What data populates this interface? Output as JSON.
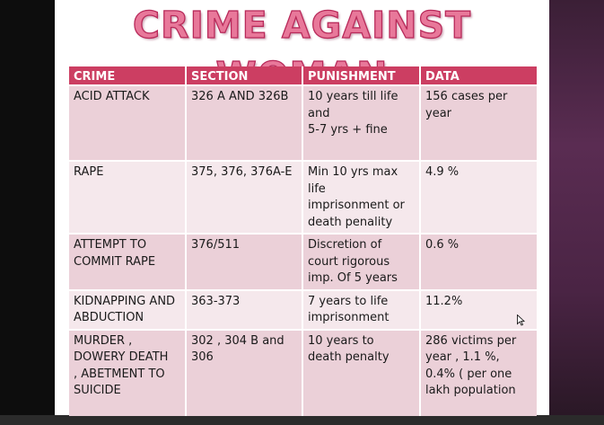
{
  "slide": {
    "title": "CRIME AGAINST WOMAN",
    "table": {
      "headers": [
        "CRIME",
        "SECTION",
        "PUNISHMENT",
        "DATA"
      ],
      "rows": [
        [
          "ACID ATTACK",
          "326 A AND 326B",
          "10 years till life\nand\n5-7 yrs + fine",
          "156 cases per\nyear"
        ],
        [
          "RAPE",
          "375, 376, 376A-E",
          "Min 10 yrs max\nlife\nimprisonment or\ndeath penality",
          "4.9 %"
        ],
        [
          "ATTEMPT TO\nCOMMIT RAPE",
          "376/511",
          "Discretion of\ncourt rigorous\nimp. Of 5 years",
          "0.6 %"
        ],
        [
          "KIDNAPPING AND\nABDUCTION",
          "363-373",
          "7 years to life\nimprisonment",
          "11.2%"
        ],
        [
          "MURDER ,\nDOWERY DEATH\n, ABETMENT TO\nSUICIDE",
          "302 , 304 B and\n306",
          "10 years to\ndeath penalty",
          "286 victims per\nyear , 1.1 %,\n0.4% ( per one\nlakh population"
        ]
      ]
    }
  },
  "colors": {
    "header_bg": "#cc3e62",
    "row_dark": "#ebd0d8",
    "row_light": "#f5e8ec",
    "title_fill": "#e8789a",
    "title_stroke": "#b82a5a"
  }
}
